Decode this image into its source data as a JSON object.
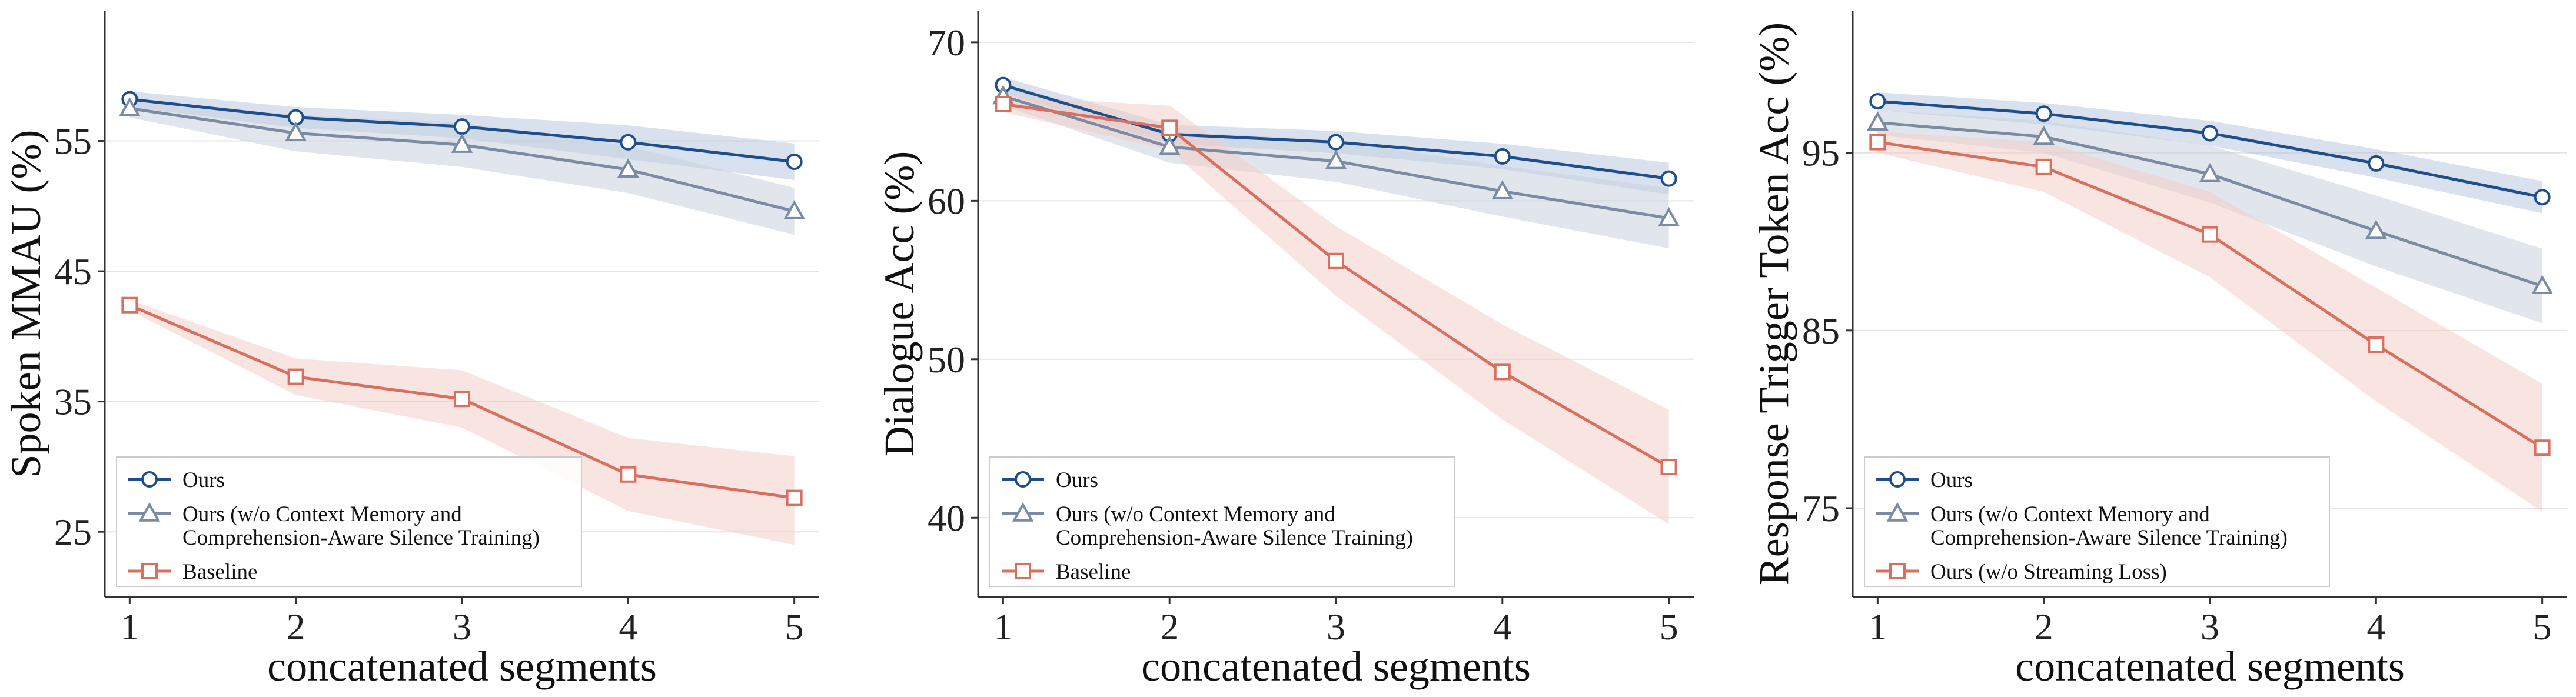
{
  "chart_data": [
    {
      "type": "line",
      "xlabel": "concatenated segments",
      "ylabel": "Spoken MMAU (%)",
      "x": [
        1,
        2,
        3,
        4,
        5
      ],
      "xlim": [
        0.85,
        5.15
      ],
      "ylim": [
        20,
        65
      ],
      "yticks": [
        25,
        35,
        45,
        55
      ],
      "grid": "horizontal",
      "legend_position": "lower-left",
      "series": [
        {
          "name": "Ours",
          "marker": "circle",
          "color": "#1f4e8c",
          "band": "#b8c9df",
          "values": [
            58.2,
            56.8,
            56.1,
            54.9,
            53.4
          ],
          "lower": [
            57.6,
            56.0,
            55.2,
            53.6,
            52.0
          ],
          "upper": [
            58.8,
            57.6,
            57.0,
            56.2,
            54.8
          ]
        },
        {
          "name": "Ours (w/o Context Memory and Comprehension-Aware Silence Training)",
          "marker": "triangle",
          "color": "#7a8ba3",
          "band": "#c9d2de",
          "values": [
            57.5,
            55.6,
            54.7,
            52.8,
            49.6
          ],
          "lower": [
            56.8,
            54.2,
            53.0,
            51.0,
            47.8
          ],
          "upper": [
            58.2,
            57.0,
            56.4,
            54.6,
            51.4
          ]
        },
        {
          "name": "Baseline",
          "marker": "square",
          "color": "#d96f5f",
          "band": "#f3cdc6",
          "values": [
            42.4,
            36.9,
            35.2,
            29.4,
            27.6
          ],
          "lower": [
            42.0,
            35.5,
            33.0,
            26.6,
            24.0
          ],
          "upper": [
            42.8,
            38.3,
            37.4,
            32.2,
            30.8
          ]
        }
      ]
    },
    {
      "type": "line",
      "xlabel": "concatenated segments",
      "ylabel": "Dialogue Acc (%)",
      "x": [
        1,
        2,
        3,
        4,
        5
      ],
      "xlim": [
        0.85,
        5.15
      ],
      "ylim": [
        35,
        72
      ],
      "yticks": [
        40,
        50,
        60,
        70
      ],
      "grid": "horizontal",
      "legend_position": "lower-left",
      "series": [
        {
          "name": "Ours",
          "marker": "circle",
          "color": "#1f4e8c",
          "band": "#b8c9df",
          "values": [
            67.3,
            64.2,
            63.7,
            62.8,
            61.4
          ],
          "lower": [
            66.8,
            63.6,
            63.0,
            62.0,
            60.4
          ],
          "upper": [
            67.8,
            64.8,
            64.4,
            63.6,
            62.4
          ]
        },
        {
          "name": "Ours (w/o Context Memory and Comprehension-Aware Silence Training)",
          "marker": "triangle",
          "color": "#7a8ba3",
          "band": "#c9d2de",
          "values": [
            66.6,
            63.4,
            62.5,
            60.6,
            58.9
          ],
          "lower": [
            66.0,
            62.4,
            61.2,
            59.0,
            57.0
          ],
          "upper": [
            67.2,
            64.4,
            63.8,
            62.2,
            60.8
          ]
        },
        {
          "name": "Baseline",
          "marker": "square",
          "color": "#d96f5f",
          "band": "#f3cdc6",
          "values": [
            66.1,
            64.6,
            56.2,
            49.2,
            43.2
          ],
          "lower": [
            65.6,
            63.2,
            54.0,
            46.2,
            39.6
          ],
          "upper": [
            66.6,
            66.0,
            58.4,
            52.2,
            46.8
          ]
        }
      ]
    },
    {
      "type": "line",
      "xlabel": "concatenated segments",
      "ylabel": "Response Trigger Token Acc (%)",
      "x": [
        1,
        2,
        3,
        4,
        5
      ],
      "xlim": [
        0.85,
        5.15
      ],
      "ylim": [
        70,
        103
      ],
      "yticks": [
        75,
        85,
        95
      ],
      "grid": "horizontal",
      "legend_position": "lower-left",
      "series": [
        {
          "name": "Ours",
          "marker": "circle",
          "color": "#1f4e8c",
          "band": "#b8c9df",
          "values": [
            97.9,
            97.2,
            96.1,
            94.4,
            92.5
          ],
          "lower": [
            97.4,
            96.6,
            95.4,
            93.6,
            91.6
          ],
          "upper": [
            98.4,
            97.8,
            96.8,
            95.2,
            93.4
          ]
        },
        {
          "name": "Ours (w/o Context Memory and Comprehension-Aware Silence Training)",
          "marker": "triangle",
          "color": "#7a8ba3",
          "band": "#c9d2de",
          "values": [
            96.7,
            95.9,
            93.8,
            90.6,
            87.5
          ],
          "lower": [
            96.0,
            95.0,
            92.2,
            88.6,
            85.4
          ],
          "upper": [
            97.4,
            96.8,
            95.4,
            92.6,
            89.6
          ]
        },
        {
          "name": "Ours (w/o Streaming Loss)",
          "marker": "square",
          "color": "#d96f5f",
          "band": "#f3cdc6",
          "values": [
            95.6,
            94.2,
            90.4,
            84.2,
            78.4
          ],
          "lower": [
            95.0,
            92.8,
            88.0,
            81.0,
            74.8
          ],
          "upper": [
            96.2,
            95.6,
            92.8,
            87.4,
            82.0
          ]
        }
      ]
    }
  ]
}
